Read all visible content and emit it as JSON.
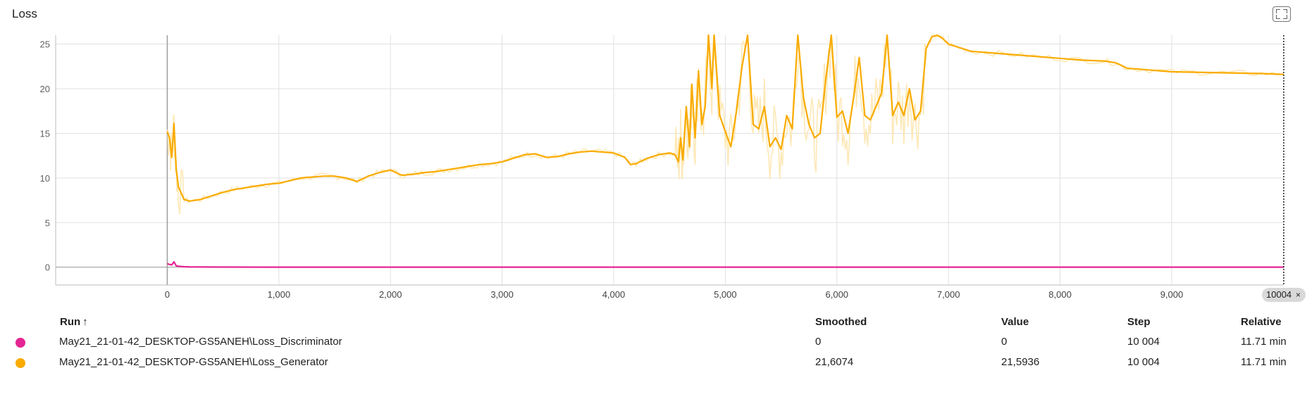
{
  "title": "Loss",
  "step_marker": {
    "label": "10004",
    "close": "×"
  },
  "table": {
    "headers": {
      "run": "Run",
      "sort": "↑",
      "smoothed": "Smoothed",
      "value": "Value",
      "step": "Step",
      "relative": "Relative"
    },
    "rows": [
      {
        "color": "#e52592",
        "run": "May21_21-01-42_DESKTOP-GS5ANEH\\Loss_Discriminator",
        "smoothed": "0",
        "value": "0",
        "step": "10 004",
        "relative": "11.71 min"
      },
      {
        "color": "#f9ab00",
        "run": "May21_21-01-42_DESKTOP-GS5ANEH\\Loss_Generator",
        "smoothed": "21,6074",
        "value": "21,5936",
        "step": "10 004",
        "relative": "11.71 min"
      }
    ]
  },
  "chart_data": {
    "type": "line",
    "title": "Loss",
    "xlim": [
      -1000,
      10004
    ],
    "ylim": [
      -2,
      26
    ],
    "x_ticks": [
      0,
      1000,
      2000,
      3000,
      4000,
      5000,
      6000,
      7000,
      8000,
      9000
    ],
    "x_tick_labels": [
      "0",
      "1,000",
      "2,000",
      "3,000",
      "4,000",
      "5,000",
      "6,000",
      "7,000",
      "8,000",
      "9,000"
    ],
    "y_ticks": [
      0,
      5,
      10,
      15,
      20,
      25
    ],
    "y_tick_labels": [
      "0",
      "5",
      "10",
      "15",
      "20",
      "25"
    ],
    "grid": true,
    "raw_color": "#fde8b6",
    "series": [
      {
        "name": "May21_21-01-42_DESKTOP-GS5ANEH\\Loss_Generator",
        "color": "#f9ab00",
        "x": [
          0,
          20,
          40,
          60,
          80,
          100,
          150,
          200,
          300,
          400,
          500,
          600,
          700,
          800,
          900,
          1000,
          1100,
          1200,
          1300,
          1400,
          1500,
          1600,
          1700,
          1800,
          1900,
          2000,
          2100,
          2200,
          2300,
          2400,
          2500,
          2600,
          2700,
          2800,
          2900,
          3000,
          3100,
          3200,
          3300,
          3400,
          3500,
          3600,
          3700,
          3800,
          3900,
          4000,
          4100,
          4150,
          4200,
          4250,
          4300,
          4400,
          4500,
          4550,
          4580,
          4600,
          4620,
          4650,
          4680,
          4700,
          4730,
          4760,
          4790,
          4820,
          4850,
          4880,
          4900,
          4950,
          5000,
          5050,
          5100,
          5150,
          5200,
          5250,
          5300,
          5350,
          5400,
          5450,
          5500,
          5550,
          5600,
          5650,
          5700,
          5750,
          5800,
          5850,
          5900,
          5950,
          6000,
          6050,
          6100,
          6150,
          6200,
          6250,
          6300,
          6350,
          6400,
          6450,
          6500,
          6550,
          6600,
          6650,
          6700,
          6750,
          6800,
          6850,
          6900,
          6950,
          7000,
          7100,
          7200,
          7400,
          7600,
          7800,
          8000,
          8200,
          8400,
          8500,
          8600,
          8800,
          9000,
          9200,
          9400,
          9600,
          9800,
          10004
        ],
        "y": [
          15.2,
          14.5,
          12.3,
          16.1,
          11.0,
          9.0,
          7.6,
          7.4,
          7.6,
          8.0,
          8.4,
          8.7,
          8.9,
          9.1,
          9.3,
          9.4,
          9.7,
          10.0,
          10.1,
          10.2,
          10.2,
          10.0,
          9.6,
          10.2,
          10.6,
          10.9,
          10.3,
          10.4,
          10.6,
          10.7,
          10.9,
          11.1,
          11.3,
          11.5,
          11.6,
          11.8,
          12.2,
          12.6,
          12.7,
          12.3,
          12.4,
          12.7,
          12.9,
          13.0,
          12.9,
          12.8,
          12.3,
          11.5,
          11.6,
          11.9,
          12.2,
          12.6,
          12.8,
          12.6,
          11.8,
          14.5,
          12.0,
          18.0,
          13.5,
          20.5,
          14.5,
          22.0,
          16.0,
          18.0,
          26.0,
          20.0,
          26.0,
          17.0,
          15.2,
          13.5,
          17.5,
          22.5,
          26.0,
          16.0,
          15.5,
          18.0,
          13.5,
          14.5,
          13.2,
          17.0,
          15.5,
          26.0,
          19.0,
          16.0,
          14.5,
          15.0,
          21.0,
          26.0,
          16.8,
          17.5,
          15.0,
          19.0,
          23.5,
          17.0,
          16.5,
          18.0,
          19.5,
          26.0,
          17.0,
          18.5,
          17.0,
          20.0,
          16.5,
          17.5,
          24.5,
          25.8,
          26.0,
          25.6,
          25.0,
          24.6,
          24.2,
          24.0,
          23.8,
          23.6,
          23.4,
          23.2,
          23.1,
          22.9,
          22.3,
          22.1,
          21.9,
          21.85,
          21.8,
          21.75,
          21.7,
          21.6
        ]
      },
      {
        "name": "May21_21-01-42_DESKTOP-GS5ANEH\\Loss_Discriminator",
        "color": "#e52592",
        "x": [
          0,
          20,
          40,
          60,
          80,
          100,
          150,
          200,
          300,
          500,
          1000,
          2000,
          4000,
          6000,
          8000,
          10004
        ],
        "y": [
          0.4,
          0.3,
          0.25,
          0.6,
          0.15,
          0.1,
          0.05,
          0.03,
          0.02,
          0.01,
          0.0,
          0.0,
          0.0,
          0.0,
          0.0,
          0.0
        ]
      }
    ]
  }
}
